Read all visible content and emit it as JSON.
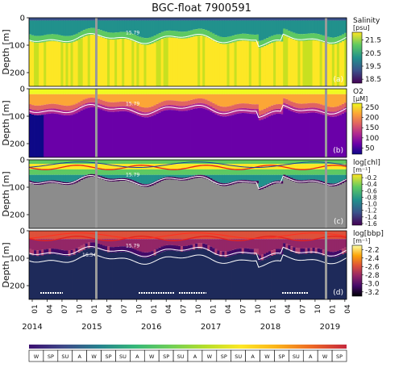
{
  "title": "BGC-float 7900591",
  "chart_data": [
    {
      "type": "heatmap",
      "panel_label": "(a)",
      "variable": "Salinity",
      "colorbar_label": [
        "Salinity",
        "[psu]"
      ],
      "colorbar_ticks": [
        "21.5",
        "20.5",
        "19.5",
        "18.5"
      ],
      "colorbar_range": [
        18.2,
        22.1
      ],
      "colormap": "viridis",
      "ylabel": "Depth [m]",
      "y_ticks": [
        "0",
        "100",
        "200"
      ],
      "isopycnals": [
        "15.79"
      ]
    },
    {
      "type": "heatmap",
      "panel_label": "(b)",
      "variable": "O2",
      "colorbar_label": [
        "O2",
        "[µM]"
      ],
      "colorbar_ticks": [
        "250",
        "200",
        "150",
        "100",
        "50"
      ],
      "colorbar_range": [
        20,
        270
      ],
      "colormap": "plasma",
      "ylabel": "Depth [m]",
      "y_ticks": [
        "0",
        "100",
        "200"
      ],
      "isopycnals": [
        "15.79"
      ]
    },
    {
      "type": "heatmap",
      "panel_label": "(c)",
      "variable": "log[chl]",
      "colorbar_label": [
        "log[chl]",
        "[m⁻¹]"
      ],
      "colorbar_ticks": [
        "-0.2",
        "-0.4",
        "-0.6",
        "-0.8",
        "-1.0",
        "-1.2",
        "-1.4",
        "-1.6"
      ],
      "colorbar_range": [
        -1.65,
        -0.1
      ],
      "colormap": "viridis",
      "ylabel": "Depth [m]",
      "y_ticks": [
        "0",
        "100",
        "200"
      ],
      "isopycnals": [
        "15.79"
      ]
    },
    {
      "type": "heatmap",
      "panel_label": "(d)",
      "variable": "log[bbp]",
      "colorbar_label": [
        "log[bbp]",
        "[m⁻¹]"
      ],
      "colorbar_ticks": [
        "-2.2",
        "-2.4",
        "-2.6",
        "-2.8",
        "-3.0",
        "-3.2"
      ],
      "colorbar_range": [
        -3.3,
        -2.1
      ],
      "colormap": "inferno",
      "ylabel": "Depth [m]",
      "y_ticks": [
        "0",
        "100",
        "200"
      ],
      "isopycnals": [
        "15.79",
        "16.34"
      ]
    }
  ],
  "x_axis": {
    "month_ticks": [
      "01",
      "04",
      "07",
      "10",
      "01",
      "04",
      "07",
      "10",
      "01",
      "04",
      "07",
      "10",
      "01",
      "04",
      "07",
      "10",
      "01",
      "04",
      "07",
      "10",
      "01",
      "04"
    ],
    "years": [
      "2014",
      "2015",
      "2016",
      "2017",
      "2018",
      "2019"
    ],
    "y_range_m": [
      0,
      250
    ]
  },
  "seasons": [
    "W",
    "SP",
    "SU",
    "A",
    "W",
    "SP",
    "SU",
    "A",
    "W",
    "SP",
    "SU",
    "A",
    "W",
    "SP",
    "SU",
    "A",
    "W",
    "SP",
    "SU",
    "A",
    "W",
    "SP"
  ]
}
